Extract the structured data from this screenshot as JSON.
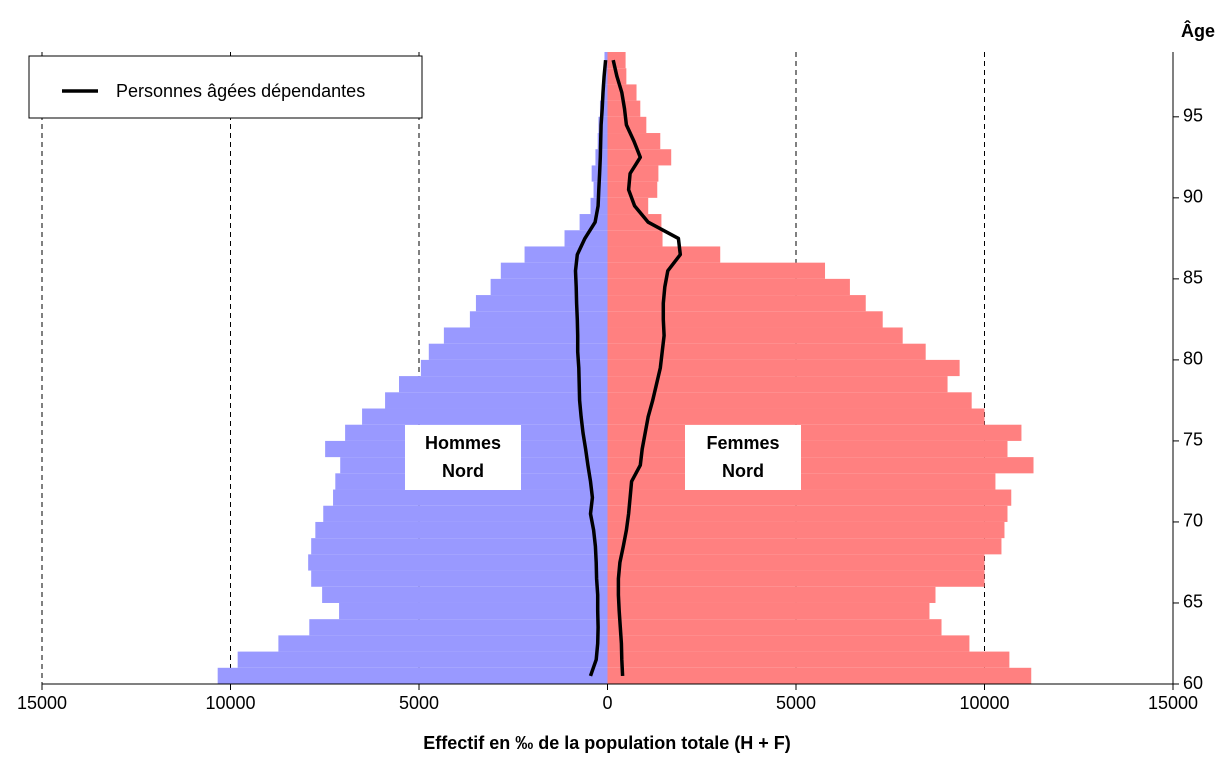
{
  "chart_data": {
    "type": "pyramid",
    "xlabel": "Effectif en ‰ de la population totale (H + F)",
    "ylabel": "Âge",
    "y": [
      60,
      61,
      62,
      63,
      64,
      65,
      66,
      67,
      68,
      69,
      70,
      71,
      72,
      73,
      74,
      75,
      76,
      77,
      78,
      79,
      80,
      81,
      82,
      83,
      84,
      85,
      86,
      87,
      88,
      89,
      90,
      91,
      92,
      93,
      94,
      95,
      96,
      97,
      98
    ],
    "xlim": [
      -15000,
      15000
    ],
    "xticks": [
      {
        "value": -15000,
        "label": "15000"
      },
      {
        "value": -10000,
        "label": "10000"
      },
      {
        "value": -5000,
        "label": "5000"
      },
      0,
      5000,
      10000,
      15000
    ],
    "ylim": [
      60,
      99
    ],
    "yticks": [
      60,
      65,
      70,
      75,
      80,
      85,
      90,
      95
    ],
    "grid": true,
    "bars": [
      {
        "color": "#9999ff",
        "values": [
          -10340,
          -9810,
          -8730,
          -7910,
          -7120,
          -7570,
          -7860,
          -7940,
          -7860,
          -7750,
          -7540,
          -7280,
          -7220,
          -7090,
          -7490,
          -6960,
          -6510,
          -5900,
          -5530,
          -4950,
          -4740,
          -4340,
          -3650,
          -3490,
          -3100,
          -2830,
          -2200,
          -1140,
          -740,
          -450,
          -370,
          -420,
          -320,
          -260,
          -240,
          -200,
          -150,
          -100,
          -80
        ]
      },
      {
        "color": "#ff8080",
        "values": [
          11240,
          10660,
          9600,
          8860,
          8540,
          8700,
          10000,
          10000,
          10450,
          10530,
          10610,
          10710,
          10290,
          11300,
          10610,
          10980,
          10000,
          9660,
          9020,
          9340,
          8440,
          7830,
          7300,
          6850,
          6430,
          5770,
          2990,
          1460,
          1430,
          1080,
          1320,
          1350,
          1690,
          1400,
          1030,
          870,
          770,
          500,
          480
        ]
      }
    ],
    "line": {
      "name": "Personnes âgées dépendantes",
      "color": "#000000",
      "series": [
        [
          -450,
          -300,
          -260,
          -250,
          -260,
          -260,
          -290,
          -300,
          -320,
          -370,
          -450,
          -400,
          -450,
          -520,
          -580,
          -650,
          -700,
          -740,
          -750,
          -760,
          -790,
          -790,
          -800,
          -820,
          -830,
          -850,
          -800,
          -600,
          -330,
          -250,
          -230,
          -210,
          -190,
          -180,
          -170,
          -140,
          -120,
          -90,
          -50
        ],
        [
          400,
          380,
          370,
          340,
          310,
          290,
          290,
          330,
          420,
          500,
          560,
          600,
          640,
          870,
          920,
          1000,
          1080,
          1200,
          1300,
          1400,
          1450,
          1500,
          1480,
          1480,
          1520,
          1600,
          1930,
          1880,
          1080,
          720,
          560,
          600,
          870,
          700,
          500,
          450,
          380,
          250,
          150
        ]
      ]
    },
    "annotations": [
      [
        "Hommes",
        "Nord"
      ],
      [
        "Femmes",
        "Nord"
      ]
    ],
    "legend": "upper left"
  }
}
